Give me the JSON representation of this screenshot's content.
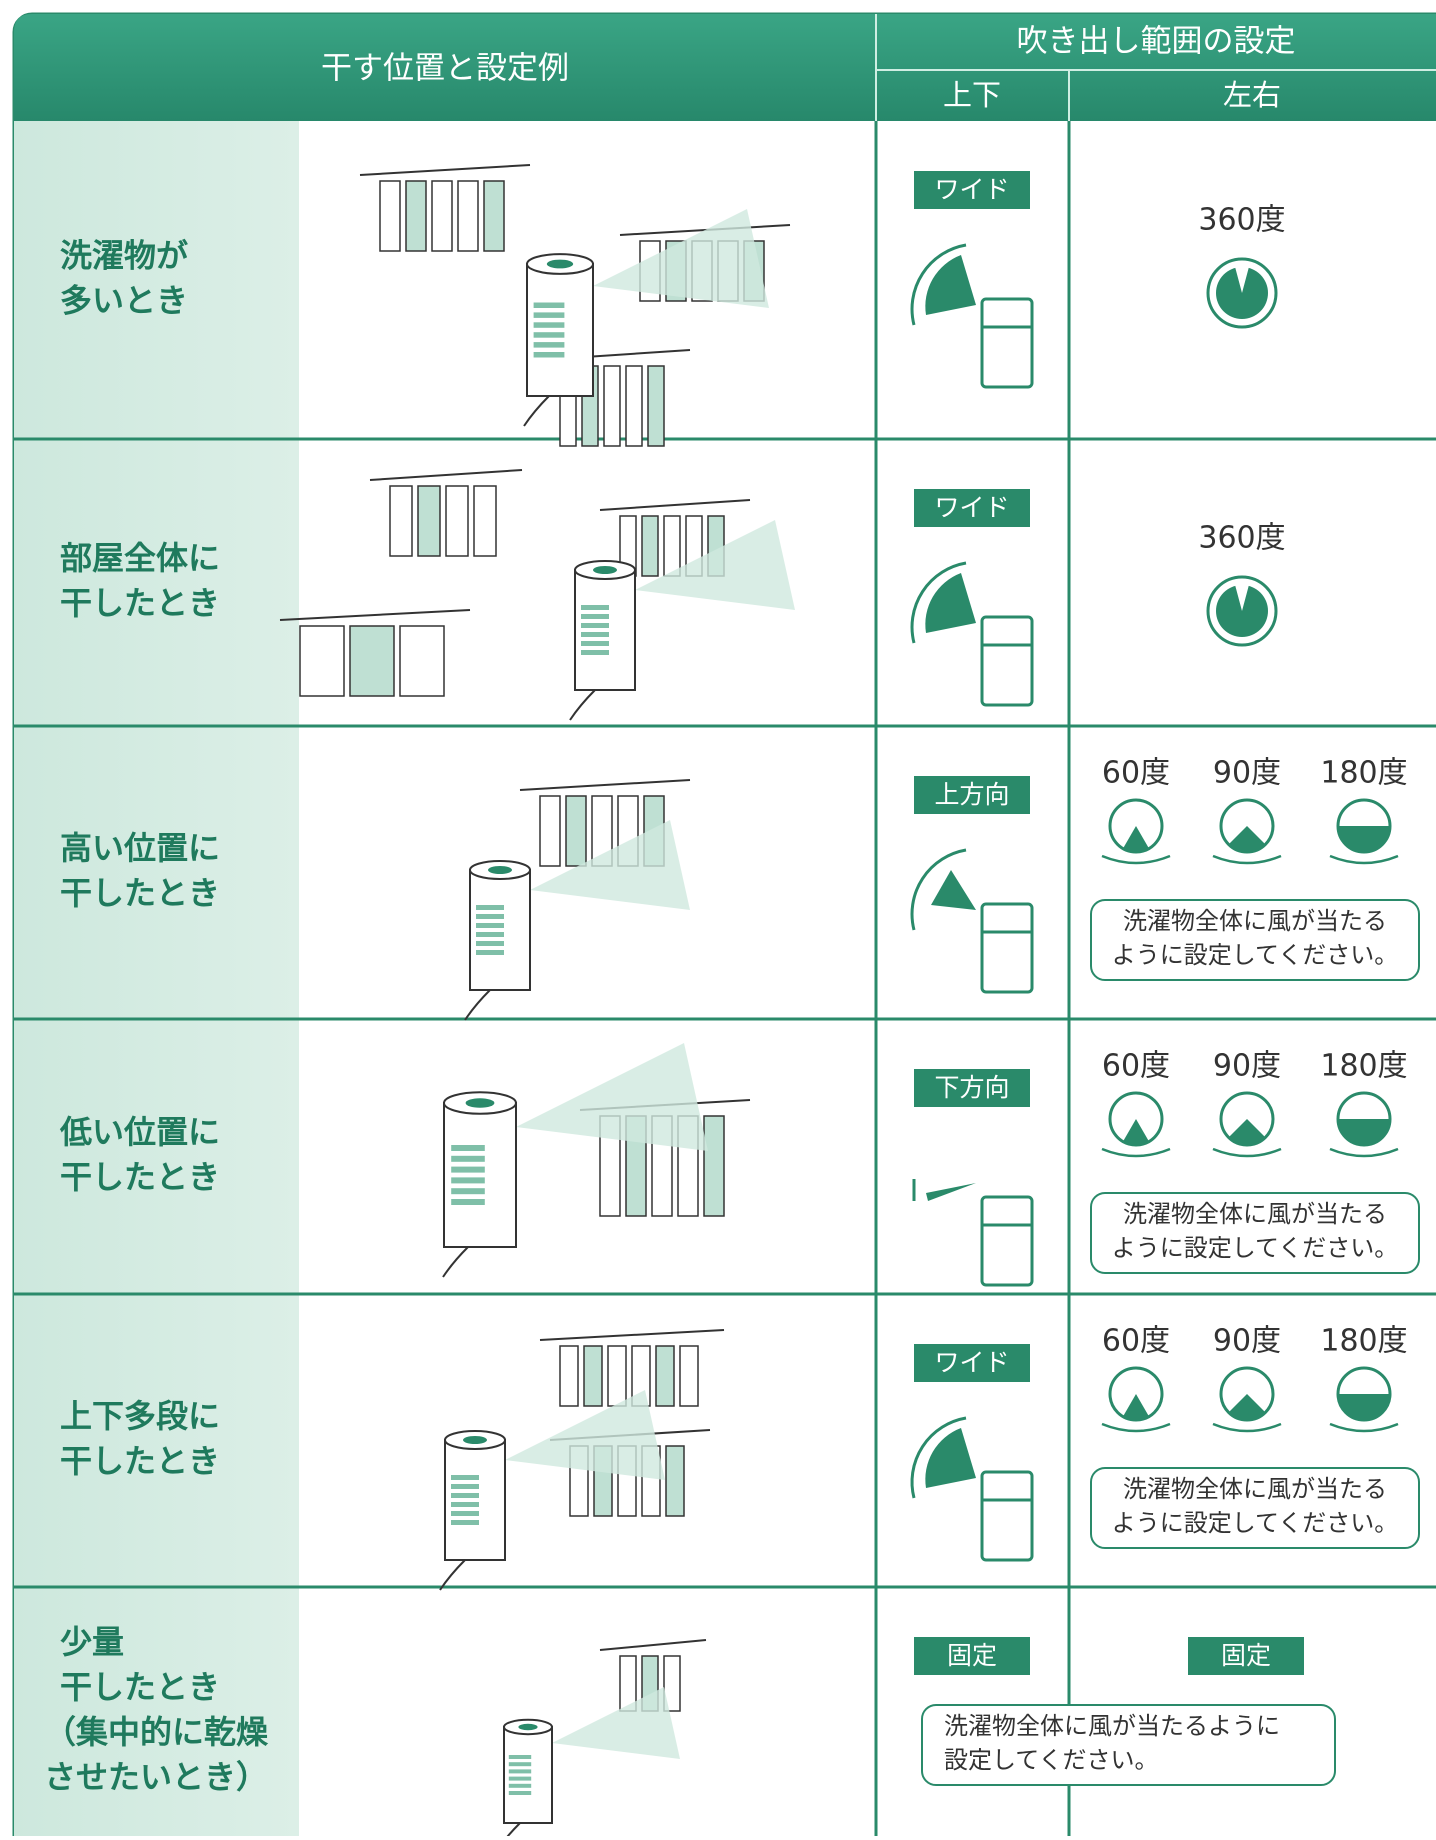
{
  "header": {
    "title": "干す位置と設定例",
    "range_title": "吹き出し範囲の設定",
    "vertical": "上下",
    "horizontal": "左右"
  },
  "rows": [
    {
      "label": [
        "洗濯物が",
        "多いとき"
      ],
      "vertical": "ワイド",
      "horizontal": {
        "angle": "360度"
      }
    },
    {
      "label": [
        "部屋全体に",
        "干したとき"
      ],
      "vertical": "ワイド",
      "horizontal": {
        "angle": "360度"
      }
    },
    {
      "label": [
        "高い位置に",
        "干したとき"
      ],
      "vertical": "上方向",
      "horizontal": {
        "angles": [
          "60度",
          "90度",
          "180度"
        ],
        "note": [
          "洗濯物全体に風が当たる",
          "ように設定してください。"
        ]
      }
    },
    {
      "label": [
        "低い位置に",
        "干したとき"
      ],
      "vertical": "下方向",
      "horizontal": {
        "angles": [
          "60度",
          "90度",
          "180度"
        ],
        "note": [
          "洗濯物全体に風が当たる",
          "ように設定してください。"
        ]
      }
    },
    {
      "label": [
        "上下多段に",
        "干したとき"
      ],
      "vertical": "ワイド",
      "horizontal": {
        "angles": [
          "60度",
          "90度",
          "180度"
        ],
        "note": [
          "洗濯物全体に風が当たる",
          "ように設定してください。"
        ]
      }
    },
    {
      "label": [
        "少量",
        "干したとき",
        "（集中的に乾燥",
        "させたいとき）"
      ],
      "vertical": "固定",
      "horizontal": {
        "setting": "固定"
      },
      "note": [
        "洗濯物全体に風が当たるように",
        "設定してください。"
      ]
    }
  ]
}
